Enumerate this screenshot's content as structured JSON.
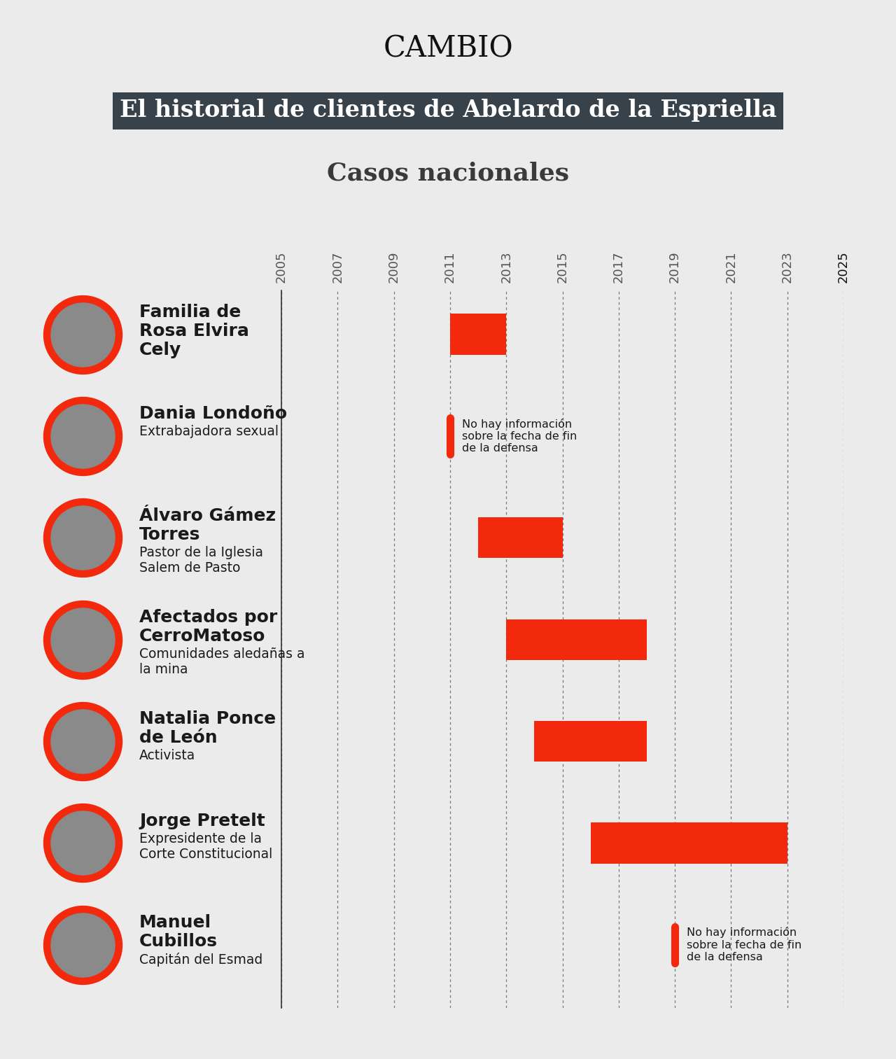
{
  "chart_data": {
    "type": "gantt",
    "header": "CAMBIO",
    "title": "El historial de clientes de Abelardo de la Espriella",
    "subtitle": "Casos nacionales",
    "orientation": "horizontal",
    "categories": [
      "Familia de Rosa Elvira Cely",
      "Dania Londoño",
      "Álvaro Gámez Torres",
      "Afectados por CerroMatoso",
      "Natalia Ponce de León",
      "Jorge Pretelt",
      "Manuel Cubillos"
    ],
    "descriptions": [
      null,
      "Extrabajadora sexual",
      "Pastor de la Iglesia Salem de Pasto",
      "Comunidades aledañas a la mina",
      "Activista",
      "Expresidente de la Corte Constitucional",
      "Capitán del Esmad"
    ],
    "start": [
      2011,
      2011,
      2012,
      2013,
      2014,
      2016,
      2019
    ],
    "end": [
      2013,
      null,
      2015,
      2018,
      2018,
      2023,
      null
    ],
    "notes": [
      null,
      "No hay información sobre la fecha de fin de la defensa",
      null,
      null,
      null,
      null,
      "No hay información sobre la fecha de fin de la defensa"
    ],
    "color": "#f2290c",
    "xlim": [
      2005,
      2025
    ],
    "xticks": [
      2005,
      2007,
      2009,
      2011,
      2013,
      2015,
      2017,
      2019,
      2021,
      2023,
      2025
    ],
    "grid": true,
    "tick_labels": "x"
  }
}
